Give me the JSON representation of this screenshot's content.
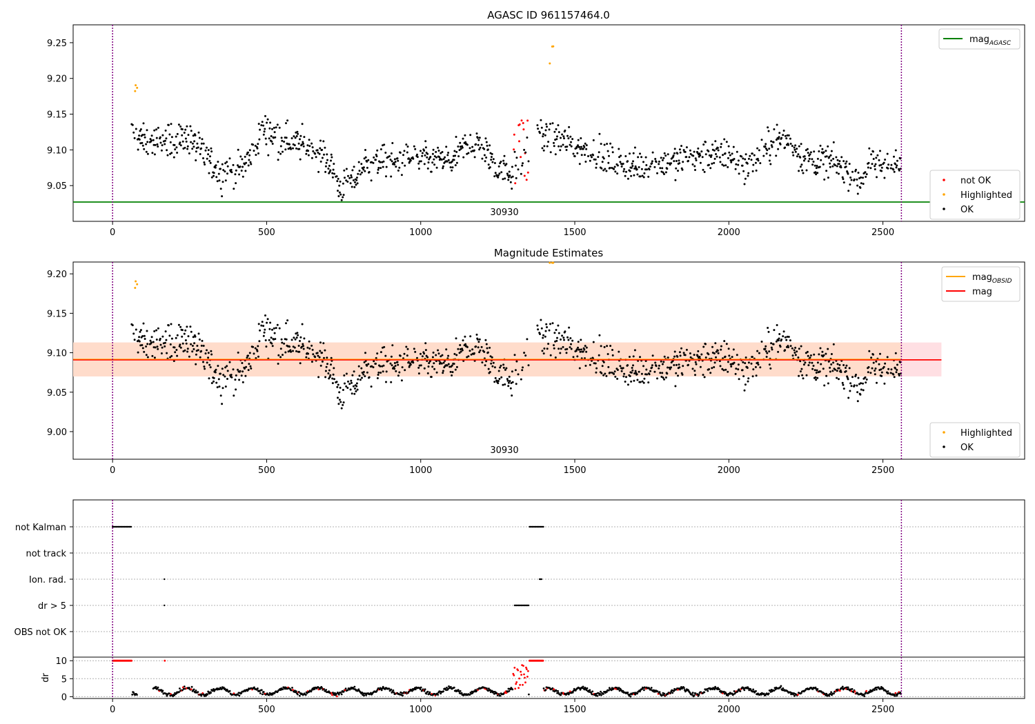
{
  "chart_data": [
    {
      "type": "scatter",
      "title": "AGASC ID 961157464.0",
      "xlabel": "",
      "ylabel": "",
      "xlim": [
        -128,
        2960
      ],
      "ylim": [
        9.0,
        9.275
      ],
      "xticks": [
        0,
        500,
        1000,
        1500,
        2000,
        2500
      ],
      "xtick_labels": [
        "0",
        "500",
        "1000",
        "1500",
        "2000",
        "2500"
      ],
      "yticks": [
        9.05,
        9.1,
        9.15,
        9.2,
        9.25
      ],
      "ytick_labels": [
        "9.05",
        "9.10",
        "9.15",
        "9.20",
        "9.25"
      ],
      "grid": false,
      "obs_boundaries": [
        0,
        2560
      ],
      "obs_label": "30930",
      "obs_label_x": 1280,
      "hline": {
        "name": "mag_AGASC",
        "y": 9.027,
        "color": "#008000"
      },
      "legend_lines": [
        {
          "label": "mag",
          "sub": "AGASC",
          "color": "#008000"
        }
      ],
      "legend_points": [
        {
          "label": "not OK",
          "color": "#ff0000"
        },
        {
          "label": "Highlighted",
          "color": "#ffa500"
        },
        {
          "label": "OK",
          "color": "#000000"
        }
      ],
      "legend_position": "top-right / bottom-right",
      "series_note": "OK points roughly 9.03-9.15 across 60-2560; Highlighted spikes near 70 and 1420; not OK cluster near 1310-1350"
    },
    {
      "type": "scatter",
      "title": "Magnitude Estimates",
      "xlabel": "",
      "ylabel": "",
      "xlim": [
        -128,
        2960
      ],
      "ylim": [
        8.965,
        9.215
      ],
      "xticks": [
        0,
        500,
        1000,
        1500,
        2000,
        2500
      ],
      "xtick_labels": [
        "0",
        "500",
        "1000",
        "1500",
        "2000",
        "2500"
      ],
      "yticks": [
        9.0,
        9.05,
        9.1,
        9.15,
        9.2
      ],
      "ytick_labels": [
        "9.00",
        "9.05",
        "9.10",
        "9.15",
        "9.20"
      ],
      "grid": false,
      "obs_boundaries": [
        0,
        2560
      ],
      "obs_label": "30930",
      "obs_label_x": 1280,
      "mag_line": {
        "y": 9.091,
        "x0": -128,
        "x1": 2690,
        "color": "#ff0000"
      },
      "mag_band": {
        "y0": 9.07,
        "y1": 9.113,
        "x0": -128,
        "x1": 2690,
        "color": "#ffdbe0"
      },
      "mag_obsid_line": {
        "y": 9.091,
        "x0": -128,
        "x1": 2560,
        "color": "#ffa500"
      },
      "mag_obsid_band": {
        "y0": 9.07,
        "y1": 9.113,
        "x0": -128,
        "x1": 2560,
        "color": "#ffdcc8"
      },
      "legend_lines": [
        {
          "label": "mag",
          "sub": "OBSID",
          "color": "#ffa500"
        },
        {
          "label": "mag",
          "sub": "",
          "color": "#ff0000"
        }
      ],
      "legend_points": [
        {
          "label": "Highlighted",
          "color": "#ffa500"
        },
        {
          "label": "OK",
          "color": "#000000"
        }
      ],
      "legend_position": "top-right / bottom-right"
    },
    {
      "type": "scatter",
      "title": "",
      "xlabel": "",
      "xlim": [
        -128,
        2960
      ],
      "xticks": [
        0,
        500,
        1000,
        1500,
        2000,
        2500
      ],
      "xtick_labels": [
        "0",
        "500",
        "1000",
        "1500",
        "2000",
        "2500"
      ],
      "flag_rows": [
        "not Kalman",
        "not track",
        "Ion. rad.",
        "dr > 5",
        "OBS not OK"
      ],
      "flag_segments": [
        {
          "row": "not Kalman",
          "ranges": [
            [
              0,
              62
            ],
            [
              1353,
              1398
            ]
          ]
        },
        {
          "row": "not track",
          "ranges": []
        },
        {
          "row": "Ion. rad.",
          "ranges": [
            [
              168,
              170
            ],
            [
              1386,
              1393
            ]
          ]
        },
        {
          "row": "dr > 5",
          "ranges": [
            [
              168,
              170
            ],
            [
              1305,
              1350
            ]
          ]
        },
        {
          "row": "OBS not OK",
          "ranges": []
        }
      ],
      "dr_panel": {
        "ylabel": "dr",
        "ylim": [
          -0.5,
          11
        ],
        "yticks": [
          0,
          5,
          10
        ],
        "ytick_labels": [
          "0",
          "5",
          "10"
        ],
        "clip_value": 10,
        "clipped_ranges": [
          [
            0,
            62
          ],
          [
            1353,
            1398
          ],
          [
            168,
            170
          ]
        ],
        "typical_range": [
          0.5,
          3
        ],
        "spike_range": [
          1300,
          1350
        ]
      }
    }
  ]
}
